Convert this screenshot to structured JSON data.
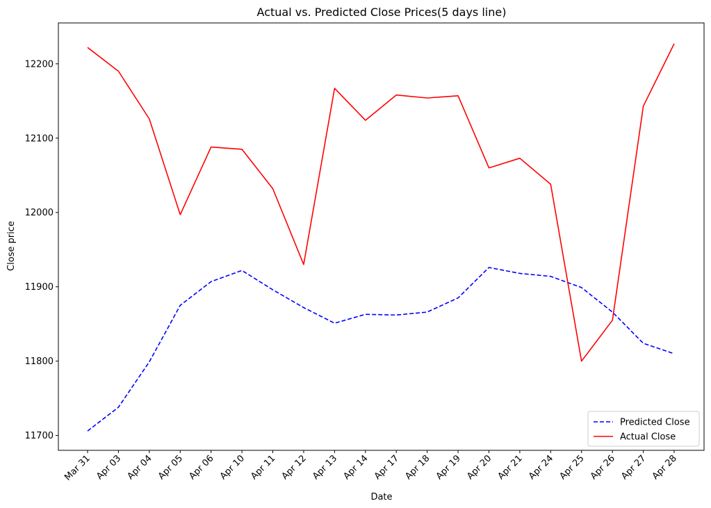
{
  "chart_data": {
    "type": "line",
    "title": "Actual vs. Predicted Close Prices(5 days line)",
    "xlabel": "Date",
    "ylabel": "Close price",
    "categories": [
      "Mar 31",
      "Apr 03",
      "Apr 04",
      "Apr 05",
      "Apr 06",
      "Apr 10",
      "Apr 11",
      "Apr 12",
      "Apr 13",
      "Apr 14",
      "Apr 17",
      "Apr 18",
      "Apr 19",
      "Apr 20",
      "Apr 21",
      "Apr 24",
      "Apr 25",
      "Apr 26",
      "Apr 27",
      "Apr 28"
    ],
    "ylim": [
      11680,
      12255
    ],
    "yticks": [
      11700,
      11800,
      11900,
      12000,
      12100,
      12200
    ],
    "grid": false,
    "legend_position": "lower-right",
    "series": [
      {
        "name": "Predicted Close",
        "color": "#0000ff",
        "style": "dashed",
        "values": [
          11706,
          11738,
          11799,
          11875,
          11907,
          11922,
          11896,
          11872,
          11851,
          11863,
          11862,
          11866,
          11885,
          11926,
          11918,
          11914,
          11899,
          11866,
          11824,
          11810
        ]
      },
      {
        "name": "Actual Close",
        "color": "#ff0000",
        "style": "solid",
        "values": [
          12222,
          12190,
          12126,
          11997,
          12088,
          12085,
          12032,
          11930,
          12167,
          12124,
          12158,
          12154,
          12157,
          12060,
          12073,
          12038,
          11800,
          11855,
          12143,
          12227
        ]
      }
    ]
  }
}
